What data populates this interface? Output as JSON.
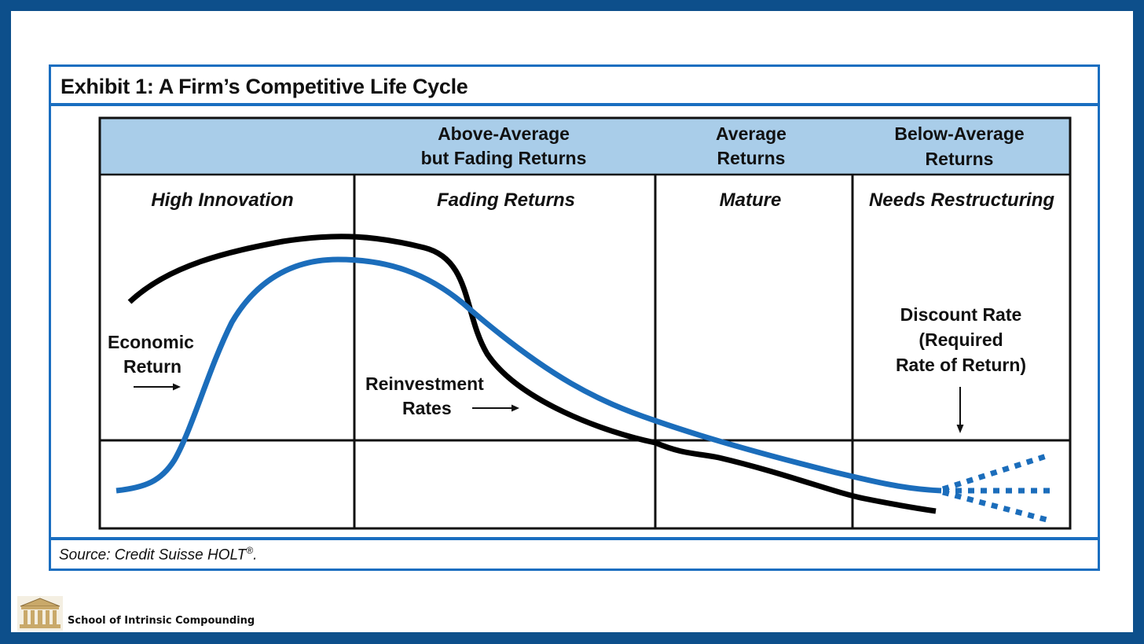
{
  "exhibit": {
    "title": "Exhibit 1: A Firm’s Competitive Life Cycle",
    "source_prefix": "Source: Credit Suisse HOLT",
    "source_mark": "®",
    "source_suffix": "."
  },
  "header_row": {
    "col2_line1": "Above-Average",
    "col2_line2": "but Fading Returns",
    "col3_line1": "Average",
    "col3_line2": "Returns",
    "col4_line1": "Below-Average",
    "col4_line2": "Returns"
  },
  "stages": [
    "High Innovation",
    "Fading Returns",
    "Mature",
    "Needs Restructuring"
  ],
  "labels": {
    "economic_line1": "Economic",
    "economic_line2": "Return",
    "reinvest_line1": "Reinvestment",
    "reinvest_line2": "Rates",
    "discount_line1": "Discount Rate",
    "discount_line2": "(Required",
    "discount_line3": "Rate of Return)"
  },
  "colors": {
    "frame_blue": "#1a6ec0",
    "header_fill": "#a9cde9",
    "economic_return_line": "#1b6dbb",
    "reinvestment_line": "#000000",
    "background": "#0d4f8b"
  },
  "footer": {
    "brand": "School of Intrinsic Compounding",
    "logo_icon": "building-icon"
  }
}
